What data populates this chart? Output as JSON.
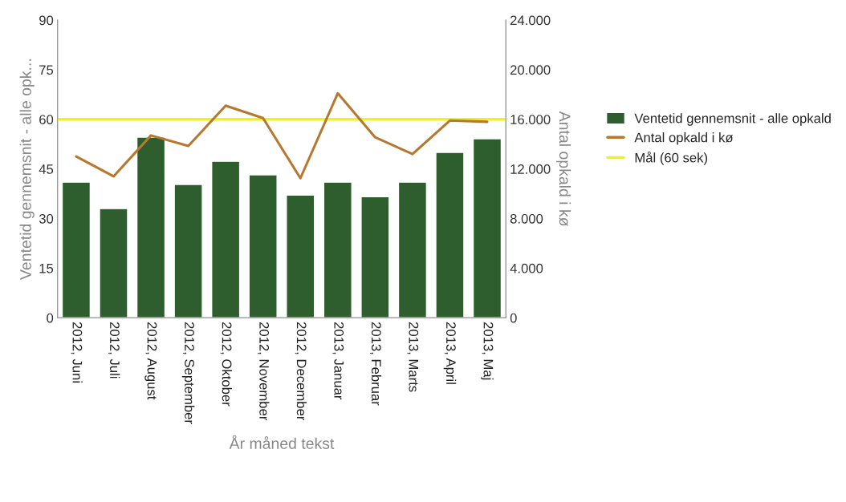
{
  "chart_data": {
    "type": "bar",
    "xlabel": "År måned tekst",
    "ylabel": "Ventetid gennemsnit - alle opk...",
    "y2label": "Antal opkald i kø",
    "categories": [
      "2012, Juni",
      "2012, Juli",
      "2012, August",
      "2012, September",
      "2012, Oktober",
      "2012, November",
      "2012, December",
      "2013, Januar",
      "2013, Februar",
      "2013, Marts",
      "2013, April",
      "2013, Maj"
    ],
    "series": [
      {
        "name": "Ventetid gennemsnit - alle opkald",
        "color": "#2e5e2e",
        "values": [
          41,
          33,
          54.6,
          40.3,
          47.3,
          43.2,
          37.1,
          41,
          36.6,
          41,
          50,
          54.1
        ]
      },
      {
        "name": "Antal opkald i kø",
        "type": "line",
        "axis": "y2",
        "color": "#b8772e",
        "values": [
          13000,
          11400,
          14700,
          13850,
          17100,
          16100,
          11250,
          18100,
          14550,
          13200,
          15900,
          15800
        ]
      }
    ],
    "ref_lines": [
      {
        "axis": "y",
        "value": 60,
        "label": "Mål (60 sek)",
        "color": "#f0f022"
      }
    ],
    "ylim": [
      0,
      90
    ],
    "yticks": [
      0,
      15,
      30,
      45,
      60,
      75,
      90
    ],
    "y2lim": [
      0,
      24000
    ],
    "y2ticks": [
      0,
      {
        "value": 4000,
        "label": "4.000"
      },
      {
        "value": 8000,
        "label": "8.000"
      },
      {
        "value": 12000,
        "label": "12.000"
      },
      {
        "value": 16000,
        "label": "16.000"
      },
      {
        "value": 20000,
        "label": "20.000"
      },
      {
        "value": 24000,
        "label": "24.000"
      }
    ],
    "legend": "right",
    "grid": false
  }
}
